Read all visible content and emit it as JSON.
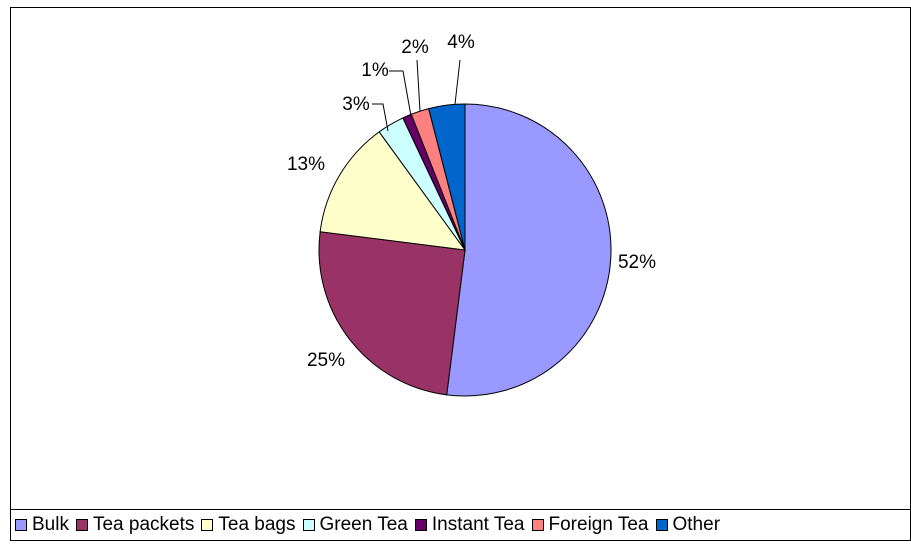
{
  "chart_data": {
    "type": "pie",
    "title": "",
    "categories": [
      "Bulk",
      "Tea packets",
      "Tea bags",
      "Green Tea",
      "Instant Tea",
      "Foreign Tea",
      "Other"
    ],
    "values": [
      52,
      25,
      13,
      3,
      1,
      2,
      4
    ],
    "labels": [
      "52%",
      "25%",
      "13%",
      "3%",
      "1%",
      "2%",
      "4%"
    ],
    "colors": [
      "#9999ff",
      "#993366",
      "#ffffcc",
      "#ccffff",
      "#660066",
      "#ff8080",
      "#0066cc"
    ],
    "legend_position": "bottom"
  }
}
